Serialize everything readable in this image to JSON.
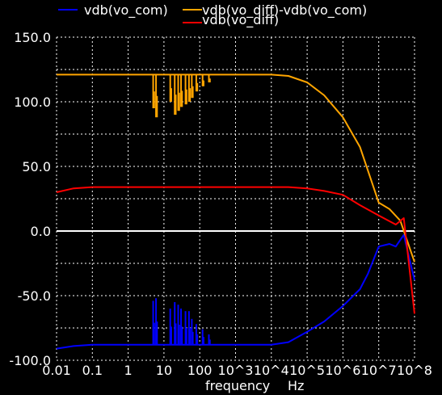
{
  "chart_data": {
    "type": "line",
    "title": "",
    "xlabel": "frequency",
    "xunit": "Hz",
    "ylabel": "",
    "x_scale": "log",
    "xlim": [
      0.01,
      100000000
    ],
    "ylim": [
      -100,
      150
    ],
    "grid": true,
    "legend_placement": "top",
    "x_tick_labels": [
      "0.01",
      "0.1",
      "1",
      "10",
      "100",
      "10^3",
      "10^4",
      "10^5",
      "10^6",
      "10^7",
      "10^8"
    ],
    "y_tick_labels": [
      "150.0",
      "100.0",
      "50.0",
      "0.0",
      "-50.0",
      "-100.0"
    ],
    "y_tick_values": [
      150,
      100,
      50,
      0,
      -50,
      -100
    ],
    "background_color": "#000000",
    "grid_color": "#ffffff",
    "zero_line_color": "#ffffff",
    "series": [
      {
        "name": "vdb(vo_com)",
        "color": "#0000ff",
        "x": [
          0.01,
          0.03,
          0.1,
          1,
          10,
          100,
          1000,
          10000,
          30000,
          100000,
          300000,
          1000000,
          3000000,
          5000000,
          10000000,
          20000000,
          30000000,
          50000000,
          100000000
        ],
        "values": [
          -91,
          -89,
          -88,
          -88,
          -88,
          -88,
          -88,
          -88,
          -86,
          -78,
          -70,
          -58,
          -45,
          -33,
          -12,
          -10,
          -12,
          -3,
          -38
        ],
        "spikes": [
          {
            "x": 5,
            "min": -88,
            "max": -54
          },
          {
            "x": 6,
            "min": -88,
            "max": -52
          },
          {
            "x": 15,
            "min": -88,
            "max": -60
          },
          {
            "x": 20,
            "min": -88,
            "max": -55
          },
          {
            "x": 25,
            "min": -88,
            "max": -57
          },
          {
            "x": 30,
            "min": -88,
            "max": -60
          },
          {
            "x": 40,
            "min": -88,
            "max": -62
          },
          {
            "x": 50,
            "min": -88,
            "max": -62
          },
          {
            "x": 60,
            "min": -88,
            "max": -68
          },
          {
            "x": 80,
            "min": -88,
            "max": -72
          },
          {
            "x": 120,
            "min": -88,
            "max": -76
          },
          {
            "x": 180,
            "min": -88,
            "max": -80
          }
        ]
      },
      {
        "name": "vdb(vo_diff)-vdb(vo_com)",
        "color": "#ffa500",
        "x": [
          0.01,
          0.03,
          0.1,
          1,
          10,
          100,
          1000,
          10000,
          30000,
          100000,
          300000,
          1000000,
          3000000,
          10000000,
          20000000,
          40000000,
          100000000
        ],
        "values": [
          121,
          121,
          121,
          121,
          121,
          121,
          121,
          121,
          120,
          115,
          105,
          88,
          65,
          22,
          17,
          8,
          -24
        ],
        "spikes": [
          {
            "x": 5,
            "min": 95,
            "max": 121
          },
          {
            "x": 6,
            "min": 88,
            "max": 121
          },
          {
            "x": 15,
            "min": 100,
            "max": 121
          },
          {
            "x": 20,
            "min": 90,
            "max": 121
          },
          {
            "x": 25,
            "min": 93,
            "max": 121
          },
          {
            "x": 30,
            "min": 96,
            "max": 121
          },
          {
            "x": 40,
            "min": 98,
            "max": 121
          },
          {
            "x": 50,
            "min": 100,
            "max": 121
          },
          {
            "x": 60,
            "min": 103,
            "max": 121
          },
          {
            "x": 80,
            "min": 108,
            "max": 121
          },
          {
            "x": 120,
            "min": 112,
            "max": 121
          },
          {
            "x": 180,
            "min": 115,
            "max": 121
          }
        ]
      },
      {
        "name": "vdb(vo_diff)",
        "color": "#ff0000",
        "x": [
          0.01,
          0.03,
          0.1,
          1,
          10,
          100,
          1000,
          10000,
          30000,
          100000,
          300000,
          1000000,
          3000000,
          10000000,
          30000000,
          50000000,
          100000000
        ],
        "values": [
          30,
          33,
          34,
          34,
          34,
          34,
          34,
          34,
          34,
          33,
          31,
          28,
          20,
          12,
          5,
          10,
          -64
        ],
        "spikes": []
      }
    ]
  }
}
